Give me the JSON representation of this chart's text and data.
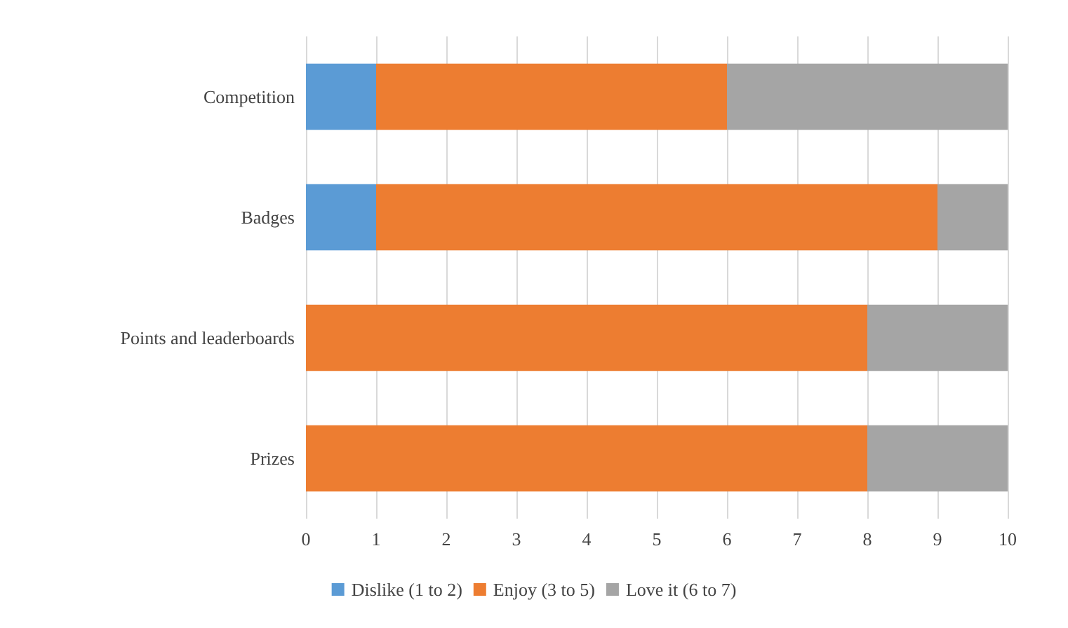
{
  "chart_data": {
    "type": "bar",
    "orientation": "horizontal",
    "stacked": true,
    "categories": [
      "Competition",
      "Badges",
      "Points and leaderboards",
      "Prizes"
    ],
    "series": [
      {
        "name": "Dislike (1 to 2)",
        "color": "#5b9bd5",
        "values": [
          1,
          1,
          0,
          0
        ]
      },
      {
        "name": "Enjoy (3 to 5)",
        "color": "#ed7d31",
        "values": [
          5,
          8,
          8,
          8
        ]
      },
      {
        "name": "Love it (6 to 7)",
        "color": "#a5a5a5",
        "values": [
          4,
          1,
          2,
          2
        ]
      }
    ],
    "xlim": [
      0,
      10
    ],
    "xticks": [
      0,
      1,
      2,
      3,
      4,
      5,
      6,
      7,
      8,
      9,
      10
    ],
    "grid": "x",
    "legend": "bottom"
  }
}
